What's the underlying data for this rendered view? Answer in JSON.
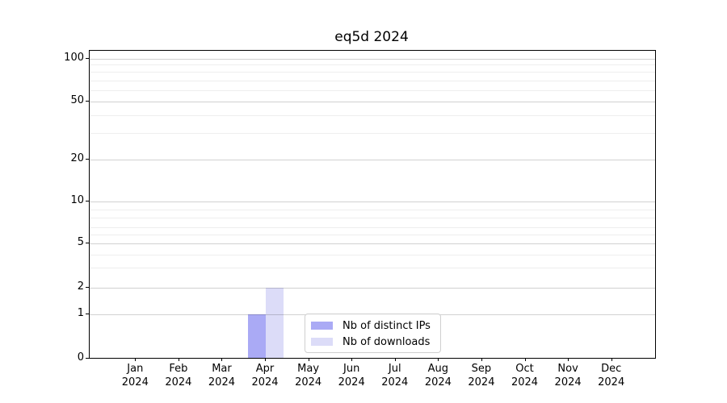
{
  "chart_data": {
    "type": "bar",
    "title": "eq5d 2024",
    "categories": [
      {
        "month": "Jan",
        "year": "2024"
      },
      {
        "month": "Feb",
        "year": "2024"
      },
      {
        "month": "Mar",
        "year": "2024"
      },
      {
        "month": "Apr",
        "year": "2024"
      },
      {
        "month": "May",
        "year": "2024"
      },
      {
        "month": "Jun",
        "year": "2024"
      },
      {
        "month": "Jul",
        "year": "2024"
      },
      {
        "month": "Aug",
        "year": "2024"
      },
      {
        "month": "Sep",
        "year": "2024"
      },
      {
        "month": "Oct",
        "year": "2024"
      },
      {
        "month": "Nov",
        "year": "2024"
      },
      {
        "month": "Dec",
        "year": "2024"
      }
    ],
    "series": [
      {
        "name": "Nb of distinct IPs",
        "color": "#aaaaf5",
        "values": [
          0,
          0,
          0,
          1,
          0,
          0,
          0,
          0,
          0,
          0,
          0,
          0
        ]
      },
      {
        "name": "Nb of downloads",
        "color": "#dcdcf8",
        "values": [
          0,
          0,
          0,
          2,
          0,
          0,
          0,
          0,
          0,
          0,
          0,
          0
        ]
      }
    ],
    "y_axis": {
      "scale": "symlog",
      "range": [
        0,
        100
      ],
      "major_ticks": [
        0,
        1,
        2,
        5,
        10,
        20,
        50,
        100
      ],
      "minor_ticks": [
        3,
        4,
        6,
        7,
        8,
        9,
        30,
        40,
        60,
        70,
        80,
        90
      ]
    },
    "x_axis": {
      "label_lines": 2
    },
    "grid": true,
    "legend": {
      "position": "lower center"
    },
    "colors": {
      "bar_distinct_ips": "#aaaaf5",
      "bar_downloads": "#dcdcf8",
      "grid_major": "#d1d1d1",
      "grid_minor": "#efefef",
      "axis": "#000000",
      "legend_border": "#cfcfcf"
    }
  }
}
